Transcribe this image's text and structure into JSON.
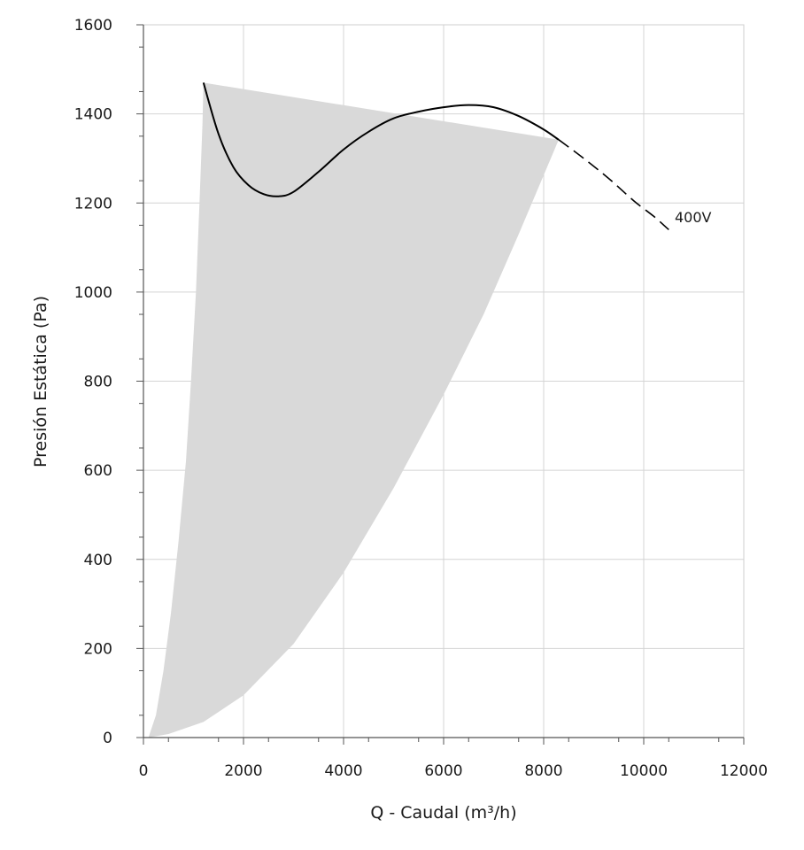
{
  "chart_data": {
    "type": "line",
    "title": "",
    "xlabel": "Q - Caudal (m³/h)",
    "ylabel": "Presión Estática (Pa)",
    "xlim": [
      0,
      12000
    ],
    "ylim": [
      0,
      1600
    ],
    "x_ticks": [
      0,
      2000,
      4000,
      6000,
      8000,
      10000,
      12000
    ],
    "y_ticks": [
      0,
      200,
      400,
      600,
      800,
      1000,
      1200,
      1400,
      1600
    ],
    "x_tick_labels": [
      "0",
      "2000",
      "4000",
      "6000",
      "8000",
      "10000",
      "12000"
    ],
    "y_tick_labels": [
      "0",
      "200",
      "400",
      "600",
      "800",
      "1000",
      "1200",
      "1400",
      "1600"
    ],
    "grid": true,
    "colors": {
      "curve": "#000000",
      "area": "#d9d9d9",
      "grid": "#d4d4d4"
    },
    "series": [
      {
        "name": "400V",
        "solid": [
          [
            1200,
            1470
          ],
          [
            1500,
            1355
          ],
          [
            1800,
            1280
          ],
          [
            2100,
            1240
          ],
          [
            2400,
            1220
          ],
          [
            2700,
            1215
          ],
          [
            3000,
            1225
          ],
          [
            3500,
            1270
          ],
          [
            4000,
            1320
          ],
          [
            4500,
            1360
          ],
          [
            5000,
            1390
          ],
          [
            5500,
            1405
          ],
          [
            6000,
            1415
          ],
          [
            6500,
            1420
          ],
          [
            7000,
            1415
          ],
          [
            7500,
            1395
          ],
          [
            8000,
            1365
          ],
          [
            8300,
            1342
          ]
        ],
        "dashed": [
          [
            8300,
            1342
          ],
          [
            8800,
            1300
          ],
          [
            9300,
            1255
          ],
          [
            9800,
            1205
          ],
          [
            10200,
            1170
          ],
          [
            10500,
            1140
          ]
        ]
      }
    ],
    "working_area": {
      "left_boundary": [
        [
          100,
          0
        ],
        [
          250,
          50
        ],
        [
          400,
          150
        ],
        [
          550,
          280
        ],
        [
          700,
          440
        ],
        [
          850,
          620
        ],
        [
          950,
          800
        ],
        [
          1050,
          1000
        ],
        [
          1120,
          1200
        ],
        [
          1180,
          1380
        ],
        [
          1200,
          1470
        ]
      ],
      "right_boundary": [
        [
          8300,
          1342
        ],
        [
          7500,
          1130
        ],
        [
          6800,
          950
        ],
        [
          6000,
          770
        ],
        [
          5000,
          560
        ],
        [
          4000,
          370
        ],
        [
          3000,
          210
        ],
        [
          2000,
          95
        ],
        [
          1200,
          35
        ],
        [
          500,
          8
        ],
        [
          100,
          0
        ]
      ]
    }
  }
}
